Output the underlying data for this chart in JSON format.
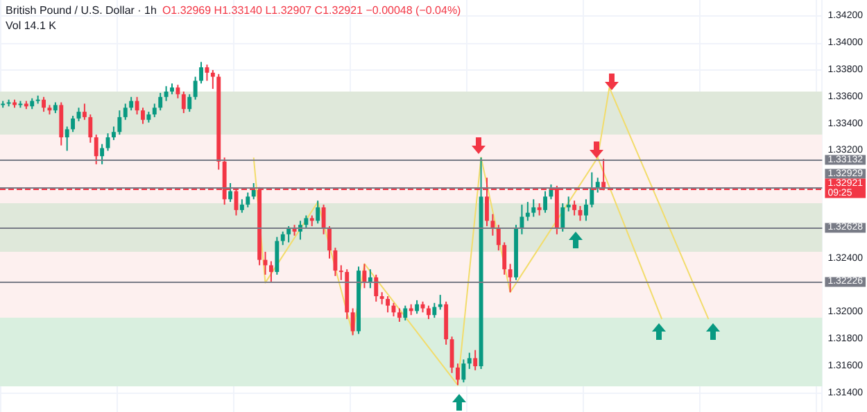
{
  "chart_data": {
    "type": "candlestick",
    "title": "British Pound / U.S. Dollar · 1h",
    "subtitle": "O1.32969 H1.33140 L1.32907 C1.32921 −0.00048 (−0.04%)",
    "annotations": [
      "Vol 14.1 K"
    ],
    "categories": [
      null,
      null,
      null,
      null,
      null,
      null,
      null,
      null,
      null,
      null,
      null,
      null,
      null,
      null,
      null,
      null,
      null,
      null,
      null,
      null,
      null,
      null,
      null,
      null,
      null,
      null,
      null,
      null,
      null,
      null,
      null,
      null,
      null,
      null,
      null,
      null,
      null,
      null,
      null,
      null,
      null,
      null,
      null,
      null,
      null,
      null,
      null,
      null,
      null,
      null,
      null,
      null,
      null,
      null,
      null,
      null,
      null,
      null,
      null,
      null,
      null,
      null,
      null,
      null,
      null,
      null,
      null,
      null,
      null,
      null,
      null,
      null,
      null,
      null,
      null,
      null,
      null,
      null,
      null,
      null,
      null,
      null,
      null,
      null,
      null,
      null,
      null,
      null,
      null,
      null,
      null,
      null,
      null,
      null,
      null,
      null,
      null,
      null,
      null,
      null,
      null,
      null,
      null,
      null,
      null,
      null,
      null,
      null,
      null,
      null,
      null,
      null,
      null,
      null,
      null,
      null,
      null,
      null,
      null,
      null,
      null,
      null,
      null,
      null,
      null,
      null,
      null,
      null,
      null,
      null,
      null,
      null,
      null,
      null,
      null,
      null,
      null,
      null,
      null,
      null,
      null
    ],
    "ohlc": [
      [
        1.3354,
        1.3357,
        1.3352,
        1.3355
      ],
      [
        1.3355,
        1.3358,
        1.3353,
        1.3356
      ],
      [
        1.3356,
        1.3358,
        1.3352,
        1.3354
      ],
      [
        1.3354,
        1.3357,
        1.3352,
        1.3355
      ],
      [
        1.3355,
        1.3357,
        1.3351,
        1.3353
      ],
      [
        1.3353,
        1.3359,
        1.3351,
        1.3357
      ],
      [
        1.3357,
        1.3361,
        1.3355,
        1.3358
      ],
      [
        1.3358,
        1.336,
        1.3349,
        1.3352
      ],
      [
        1.3352,
        1.3354,
        1.3347,
        1.335
      ],
      [
        1.335,
        1.3356,
        1.3348,
        1.3354
      ],
      [
        1.3354,
        1.3356,
        1.3324,
        1.333
      ],
      [
        1.333,
        1.3338,
        1.332,
        1.3336
      ],
      [
        1.3336,
        1.3346,
        1.3334,
        1.3344
      ],
      [
        1.3344,
        1.3352,
        1.3342,
        1.3349
      ],
      [
        1.3349,
        1.3355,
        1.3343,
        1.3345
      ],
      [
        1.3345,
        1.3347,
        1.3326,
        1.333
      ],
      [
        1.333,
        1.3332,
        1.331,
        1.3316
      ],
      [
        1.3316,
        1.3325,
        1.331,
        1.3322
      ],
      [
        1.3322,
        1.3333,
        1.332,
        1.333
      ],
      [
        1.333,
        1.3338,
        1.3328,
        1.3334
      ],
      [
        1.3334,
        1.335,
        1.3332,
        1.3345
      ],
      [
        1.3345,
        1.3355,
        1.3343,
        1.3352
      ],
      [
        1.3352,
        1.336,
        1.335,
        1.3357
      ],
      [
        1.3357,
        1.336,
        1.3347,
        1.335
      ],
      [
        1.335,
        1.3352,
        1.334,
        1.3343
      ],
      [
        1.3343,
        1.3349,
        1.3341,
        1.3347
      ],
      [
        1.3347,
        1.3355,
        1.3345,
        1.3352
      ],
      [
        1.3352,
        1.3363,
        1.335,
        1.336
      ],
      [
        1.336,
        1.3368,
        1.3357,
        1.3364
      ],
      [
        1.3364,
        1.337,
        1.3362,
        1.3367
      ],
      [
        1.3367,
        1.3369,
        1.3359,
        1.3362
      ],
      [
        1.3362,
        1.3364,
        1.3348,
        1.3351
      ],
      [
        1.3351,
        1.3362,
        1.3349,
        1.336
      ],
      [
        1.336,
        1.3375,
        1.3358,
        1.3372
      ],
      [
        1.3372,
        1.3386,
        1.337,
        1.3382
      ],
      [
        1.3382,
        1.3384,
        1.3372,
        1.3378
      ],
      [
        1.3378,
        1.338,
        1.3366,
        1.3375
      ],
      [
        1.3375,
        1.3377,
        1.3306,
        1.3312
      ],
      [
        1.3312,
        1.3315,
        1.328,
        1.3284
      ],
      [
        1.3284,
        1.3296,
        1.3282,
        1.329
      ],
      [
        1.329,
        1.3292,
        1.3272,
        1.3276
      ],
      [
        1.3276,
        1.3284,
        1.3274,
        1.328
      ],
      [
        1.328,
        1.3289,
        1.3278,
        1.3286
      ],
      [
        1.3286,
        1.3296,
        1.3284,
        1.3291
      ],
      [
        1.3291,
        1.3293,
        1.3235,
        1.3239
      ],
      [
        1.3239,
        1.3245,
        1.3228,
        1.3235
      ],
      [
        1.3235,
        1.3238,
        1.3222,
        1.323
      ],
      [
        1.323,
        1.3256,
        1.3228,
        1.3253
      ],
      [
        1.3253,
        1.326,
        1.325,
        1.3258
      ],
      [
        1.3258,
        1.3264,
        1.3252,
        1.3262
      ],
      [
        1.3262,
        1.3265,
        1.3257,
        1.326
      ],
      [
        1.326,
        1.3268,
        1.3254,
        1.3265
      ],
      [
        1.3265,
        1.3272,
        1.3262,
        1.327
      ],
      [
        1.327,
        1.3272,
        1.3264,
        1.3268
      ],
      [
        1.3268,
        1.3283,
        1.3266,
        1.3278
      ],
      [
        1.3278,
        1.328,
        1.3258,
        1.3262
      ],
      [
        1.3262,
        1.3264,
        1.324,
        1.3246
      ],
      [
        1.3246,
        1.3248,
        1.3227,
        1.3231
      ],
      [
        1.3231,
        1.3235,
        1.3224,
        1.323
      ],
      [
        1.323,
        1.3232,
        1.3195,
        1.32
      ],
      [
        1.32,
        1.3203,
        1.3183,
        1.3186
      ],
      [
        1.3186,
        1.3234,
        1.3184,
        1.3231
      ],
      [
        1.3231,
        1.3236,
        1.3218,
        1.3222
      ],
      [
        1.3222,
        1.3232,
        1.3218,
        1.3226
      ],
      [
        1.3226,
        1.3228,
        1.3208,
        1.3212
      ],
      [
        1.3212,
        1.3215,
        1.3206,
        1.321
      ],
      [
        1.321,
        1.3212,
        1.32,
        1.3205
      ],
      [
        1.3205,
        1.3207,
        1.3197,
        1.32
      ],
      [
        1.32,
        1.3203,
        1.3193,
        1.3196
      ],
      [
        1.3196,
        1.3205,
        1.3194,
        1.3203
      ],
      [
        1.3203,
        1.3206,
        1.3198,
        1.3201
      ],
      [
        1.3201,
        1.3209,
        1.3199,
        1.3206
      ],
      [
        1.3206,
        1.3208,
        1.32,
        1.3203
      ],
      [
        1.3203,
        1.3205,
        1.3195,
        1.3198
      ],
      [
        1.3198,
        1.3207,
        1.3196,
        1.3204
      ],
      [
        1.3204,
        1.3213,
        1.3202,
        1.3206
      ],
      [
        1.3206,
        1.3208,
        1.3176,
        1.318
      ],
      [
        1.318,
        1.3182,
        1.3155,
        1.3159
      ],
      [
        1.3159,
        1.3162,
        1.3146,
        1.315
      ],
      [
        1.315,
        1.3165,
        1.3148,
        1.3162
      ],
      [
        1.3162,
        1.317,
        1.3158,
        1.3166
      ],
      [
        1.3166,
        1.3172,
        1.3157,
        1.316
      ],
      [
        1.316,
        1.3315,
        1.3158,
        1.3286
      ],
      [
        1.3286,
        1.33,
        1.3264,
        1.3268
      ],
      [
        1.3268,
        1.3273,
        1.3257,
        1.3262
      ],
      [
        1.3262,
        1.3265,
        1.3246,
        1.325
      ],
      [
        1.325,
        1.3252,
        1.3228,
        1.3232
      ],
      [
        1.3232,
        1.3236,
        1.3215,
        1.3226
      ],
      [
        1.3226,
        1.3265,
        1.3224,
        1.3262
      ],
      [
        1.3262,
        1.328,
        1.3258,
        1.3271
      ],
      [
        1.3271,
        1.3282,
        1.3268,
        1.3274
      ],
      [
        1.3274,
        1.3284,
        1.3271,
        1.3278
      ],
      [
        1.3278,
        1.3281,
        1.3272,
        1.3276
      ],
      [
        1.3276,
        1.329,
        1.3274,
        1.3286
      ],
      [
        1.3286,
        1.3295,
        1.3284,
        1.3292
      ],
      [
        1.3292,
        1.3294,
        1.3258,
        1.3262
      ],
      [
        1.3262,
        1.3281,
        1.326,
        1.3278
      ],
      [
        1.3278,
        1.3286,
        1.3275,
        1.328
      ],
      [
        1.328,
        1.3283,
        1.3272,
        1.3276
      ],
      [
        1.3276,
        1.3279,
        1.3268,
        1.3272
      ],
      [
        1.3272,
        1.3284,
        1.3268,
        1.328
      ],
      [
        1.328,
        1.3304,
        1.3278,
        1.3292
      ],
      [
        1.3292,
        1.33,
        1.3289,
        1.32969
      ],
      [
        1.32969,
        1.3314,
        1.32907,
        1.32921
      ],
      null,
      null,
      null,
      null,
      null,
      null,
      null,
      null,
      null,
      null,
      null,
      null,
      null,
      null,
      null,
      null,
      null,
      null,
      null,
      null,
      null,
      null,
      null,
      null,
      null,
      null,
      null,
      null,
      null,
      null,
      null,
      null,
      null,
      null,
      null,
      null,
      null
    ],
    "series": [
      {
        "type": "line",
        "color": "#f2dc6b",
        "values": [
          null,
          null,
          null,
          null,
          null,
          null,
          null,
          null,
          null,
          null,
          null,
          null,
          null,
          null,
          null,
          null,
          null,
          null,
          null,
          null,
          null,
          null,
          null,
          null,
          null,
          null,
          null,
          null,
          null,
          null,
          null,
          null,
          null,
          null,
          null,
          null,
          null,
          null,
          null,
          null,
          null,
          null,
          null,
          1.3315,
          null,
          1.3222,
          null,
          null,
          null,
          null,
          null,
          null,
          null,
          null,
          1.3282,
          null,
          null,
          null,
          null,
          null,
          1.3184,
          null,
          1.3236,
          null,
          null,
          null,
          null,
          null,
          null,
          null,
          null,
          null,
          null,
          null,
          null,
          null,
          null,
          null,
          1.3146,
          null,
          null,
          null,
          1.3315,
          null,
          null,
          null,
          null,
          1.3215,
          null,
          null,
          null,
          null,
          null,
          null,
          null,
          null,
          null,
          null,
          null,
          null,
          null,
          null,
          1.3315,
          null,
          1.3367,
          null,
          null,
          null,
          null,
          null,
          null,
          null,
          null,
          null,
          null,
          null,
          null,
          null,
          null,
          null,
          null,
          1.3195,
          null,
          null,
          null,
          null,
          null,
          null,
          null,
          null,
          null,
          null,
          null,
          null,
          null,
          null,
          null,
          null,
          null,
          null,
          null
        ]
      },
      {
        "type": "line",
        "color": "#f2dc6b",
        "values": [
          null,
          null,
          null,
          null,
          null,
          null,
          null,
          null,
          null,
          null,
          null,
          null,
          null,
          null,
          null,
          null,
          null,
          null,
          null,
          null,
          null,
          null,
          null,
          null,
          null,
          null,
          null,
          null,
          null,
          null,
          null,
          null,
          null,
          null,
          null,
          null,
          null,
          null,
          null,
          null,
          null,
          null,
          null,
          null,
          null,
          null,
          null,
          null,
          null,
          null,
          null,
          null,
          null,
          null,
          null,
          null,
          null,
          null,
          null,
          null,
          null,
          null,
          null,
          null,
          null,
          null,
          null,
          null,
          null,
          null,
          null,
          null,
          null,
          null,
          null,
          null,
          null,
          null,
          null,
          null,
          null,
          null,
          null,
          null,
          null,
          null,
          null,
          null,
          null,
          null,
          null,
          null,
          null,
          null,
          null,
          null,
          null,
          null,
          null,
          null,
          null,
          null,
          1.3315,
          null,
          null,
          null,
          null,
          null,
          null,
          null,
          null,
          null,
          null,
          1.3195,
          null,
          null,
          null,
          null,
          null,
          null,
          null,
          null,
          null,
          null,
          null,
          null,
          null,
          null,
          null,
          null,
          null,
          null,
          null,
          null,
          null,
          null,
          null,
          null,
          null,
          null,
          null
        ]
      }
    ],
    "ylim": [
      1.3126,
      1.3432
    ],
    "yticks": [
      {
        "value": 1.314,
        "label": "1.31400"
      },
      {
        "value": 1.316,
        "label": "1.31600"
      },
      {
        "value": 1.318,
        "label": "1.31800"
      },
      {
        "value": 1.32,
        "label": "1.32000"
      },
      {
        "value": 1.324,
        "label": "1.32400"
      },
      {
        "value": 1.332,
        "label": "1.33200"
      },
      {
        "value": 1.334,
        "label": "1.33400"
      },
      {
        "value": 1.336,
        "label": "1.33600"
      },
      {
        "value": 1.338,
        "label": "1.33800"
      },
      {
        "value": 1.34,
        "label": "1.34000"
      },
      {
        "value": 1.342,
        "label": "1.34200"
      }
    ],
    "tick_labels": "y",
    "grid": true,
    "ref_lines": [
      {
        "axis": "y",
        "value": 1.33132,
        "label": "1.33132",
        "color": "#787b86",
        "line_style": "solid"
      },
      {
        "axis": "y",
        "value": 1.32929,
        "label": "1.32929",
        "color": "#787b86",
        "line_style": "solid"
      },
      {
        "axis": "y",
        "value": 1.32921,
        "label": "1.32921\n09:25",
        "color": "#f23645",
        "line_style": "dashed"
      },
      {
        "axis": "y",
        "value": 1.32628,
        "label": "1.32628",
        "color": "#787b86",
        "line_style": "solid"
      },
      {
        "axis": "y",
        "value": 1.32226,
        "label": "1.32226",
        "color": "#787b86",
        "line_style": "solid"
      }
    ],
    "bands": [
      {
        "axis": "y",
        "from": 1.3332,
        "to": 1.3364,
        "color": "#dfe8da"
      },
      {
        "axis": "y",
        "from": 1.3281,
        "to": 1.3332,
        "color": "#fdf0ef"
      },
      {
        "axis": "y",
        "from": 1.3245,
        "to": 1.3281,
        "color": "#dfe8da"
      },
      {
        "axis": "y",
        "from": 1.3196,
        "to": 1.3245,
        "color": "#fdf0ef"
      },
      {
        "axis": "y",
        "from": 1.3145,
        "to": 1.3196,
        "color": "#d9efdf"
      }
    ]
  }
}
